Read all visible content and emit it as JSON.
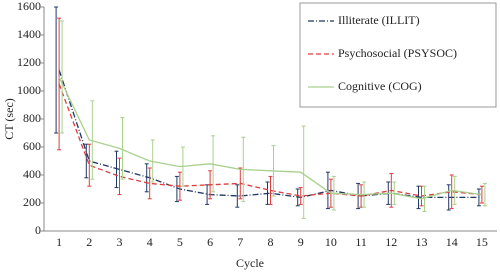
{
  "chart_data": {
    "type": "line",
    "x_label": "Cycle",
    "y_label": "CT (sec)",
    "categories": [
      "1",
      "2",
      "3",
      "4",
      "5",
      "6",
      "7",
      "8",
      "9",
      "10",
      "11",
      "12",
      "13",
      "14",
      "15"
    ],
    "ylim": [
      0,
      1600
    ],
    "yticks": [
      0,
      200,
      400,
      600,
      800,
      1000,
      1200,
      1400,
      1600
    ],
    "grid": false,
    "legend": "top-right",
    "series": [
      {
        "name": "Illiterate (ILLIT)",
        "color": "#1f3864",
        "dash": "6 2 1 2",
        "values": [
          1150,
          500,
          440,
          380,
          300,
          260,
          250,
          270,
          240,
          290,
          250,
          270,
          240,
          240,
          240
        ],
        "errors": [
          450,
          120,
          130,
          100,
          90,
          70,
          80,
          80,
          60,
          130,
          90,
          80,
          80,
          90,
          60
        ]
      },
      {
        "name": "Psychosocial (PSYSOC)",
        "color": "#e03c3c",
        "dash": "5 3",
        "values": [
          1050,
          470,
          390,
          340,
          320,
          330,
          340,
          290,
          250,
          270,
          250,
          290,
          250,
          280,
          260
        ],
        "errors": [
          470,
          150,
          130,
          110,
          100,
          100,
          110,
          100,
          60,
          100,
          80,
          120,
          70,
          120,
          60
        ]
      },
      {
        "name": "Cognitive (COG)",
        "color": "#a9d18e",
        "dash": "",
        "values": [
          1100,
          650,
          590,
          500,
          460,
          480,
          440,
          430,
          420,
          270,
          260,
          270,
          230,
          290,
          260
        ],
        "errors": [
          400,
          280,
          220,
          150,
          140,
          200,
          230,
          180,
          330,
          120,
          90,
          80,
          90,
          100,
          80
        ]
      }
    ]
  }
}
